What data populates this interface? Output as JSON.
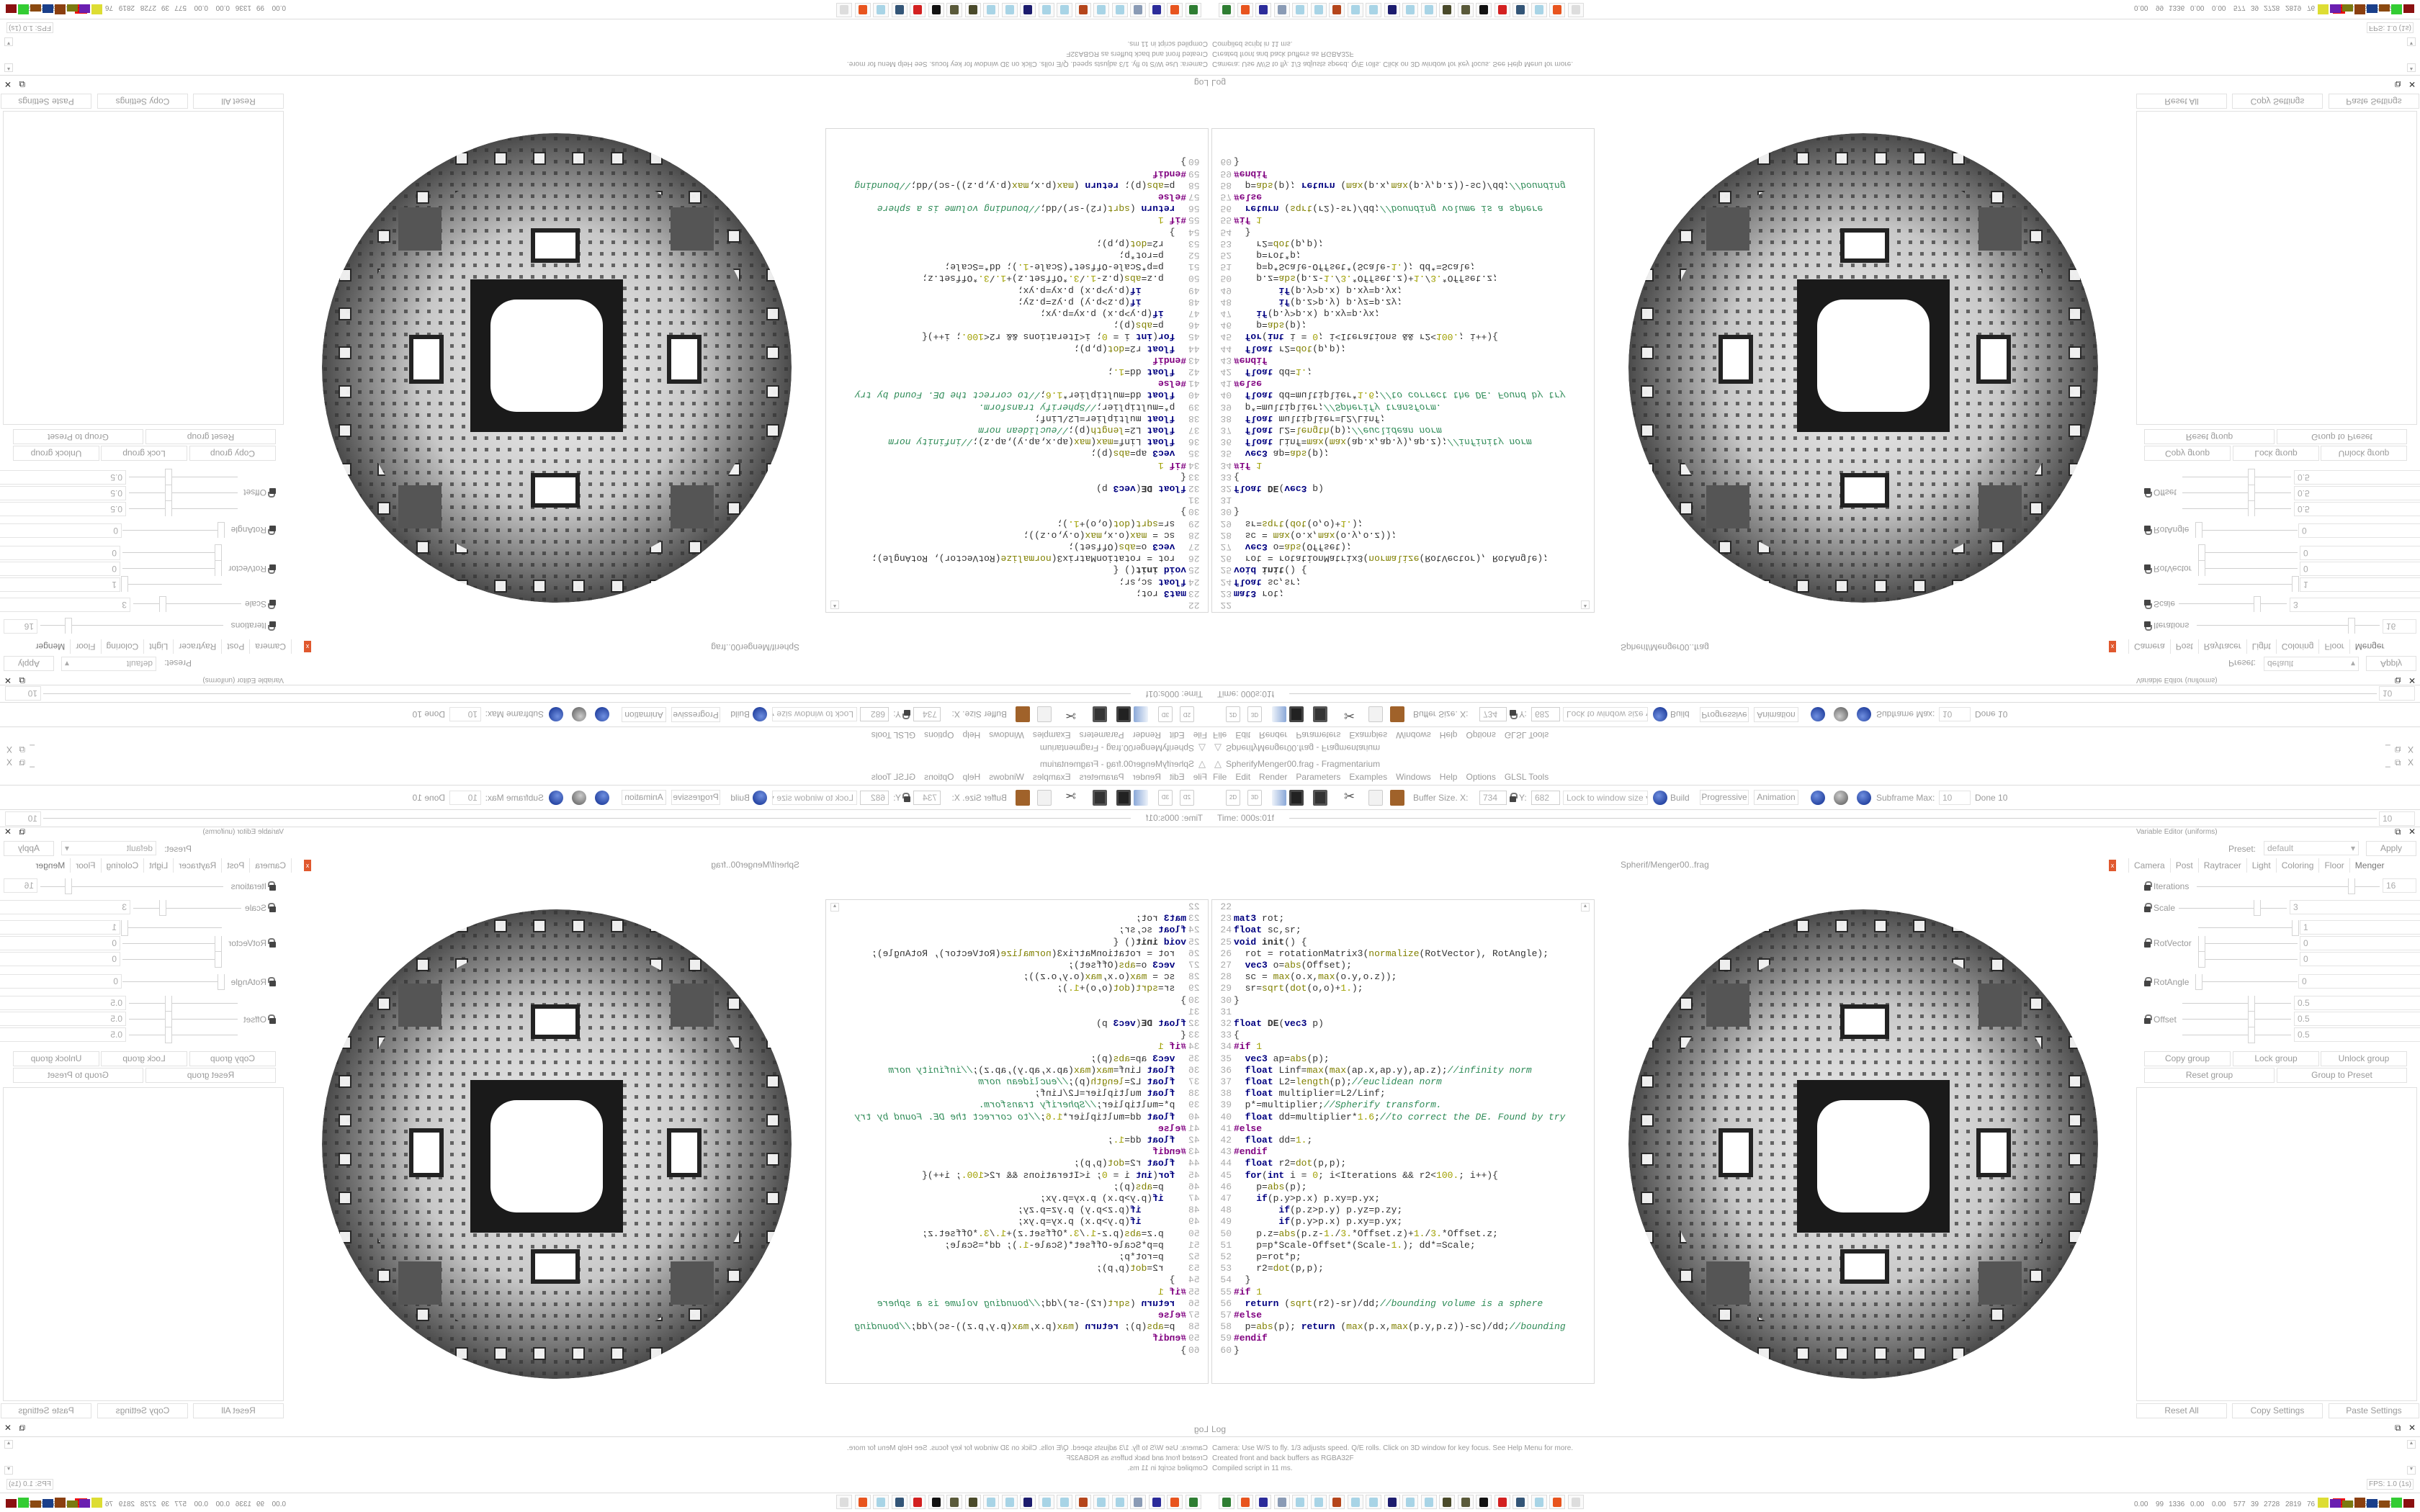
{
  "window": {
    "title": "SpherifyMenger00.frag - Fragmentarium",
    "controls": [
      "_",
      "⧉",
      "X"
    ]
  },
  "menu": [
    "File",
    "Edit",
    "Render",
    "Parameters",
    "Examples",
    "Windows",
    "Help",
    "Options",
    "GLSL Tools"
  ],
  "toolbar": {
    "btn_2d": "2D",
    "btn_3d": "3D",
    "buffer_label": "Buffer Size. X:",
    "buffer_x": "734",
    "y_label": "Y:",
    "buffer_y": "682",
    "lock_select": "Lock to window size",
    "build": "Build",
    "progressive": "Progressive",
    "animation": "Animation",
    "subframe_label": "Subframe Max:",
    "subframe_value": "10",
    "done": "Done 10",
    "icons": [
      "2d-icon",
      "3d-icon",
      "open-icon",
      "save-icon",
      "save-as-icon",
      "cut-icon",
      "copy-icon",
      "paste-icon",
      "build-icon",
      "rewind-icon",
      "play-icon",
      "stop-icon"
    ]
  },
  "timeline": {
    "time": "Time: 000s:01f",
    "frame": "10"
  },
  "editor": {
    "tab_label": "Spherif/Menger00..frag",
    "first_line": 22,
    "lines": [
      "",
      "mat3 rot;",
      "float sc,sr;",
      "void init() {",
      "  rot = rotationMatrix3(normalize(RotVector), RotAngle);",
      "  vec3 o=abs(Offset);",
      "  sc = max(o.x,max(o.y,o.z));",
      "  sr=sqrt(dot(o,o)+1.);",
      "}",
      "",
      "float DE(vec3 p)",
      "{",
      "#if 1",
      "  vec3 ap=abs(p);",
      "  float Linf=max(max(ap.x,ap.y),ap.z);//infinity norm",
      "  float L2=length(p);//euclidean norm",
      "  float multiplier=L2/Linf;",
      "  p*=multiplier;//Spherify transform.",
      "  float dd=multiplier*1.6;//to correct the DE. Found by try",
      "#else",
      "  float dd=1.;",
      "#endif",
      "  float r2=dot(p,p);",
      "  for(int i = 0; i<Iterations && r2<100.; i++){",
      "    p=abs(p);",
      "    if(p.y>p.x) p.xy=p.yx;",
      "        if(p.z>p.y) p.yz=p.zy;",
      "        if(p.y>p.x) p.xy=p.yx;",
      "    p.z=abs(p.z-1./3.*Offset.z)+1./3.*Offset.z;",
      "    p=p*Scale-Offset*(Scale-1.); dd*=Scale;",
      "    p=rot*p;",
      "    r2=dot(p,p);",
      "  }",
      "#if 1",
      "  return (sqrt(r2)-sr)/dd;//bounding volume is a sphere",
      "#else",
      "  p=abs(p); return (max(p.x,max(p.y,p.z))-sc)/dd;//bounding",
      "#endif",
      "}"
    ]
  },
  "variable_editor": {
    "title": "Variable Editor (uniforms)",
    "preset_label": "Preset:",
    "preset_value": "default",
    "apply": "Apply",
    "tabs": [
      "Camera",
      "Post",
      "Raytracer",
      "Light",
      "Coloring",
      "Floor",
      "Menger"
    ],
    "active_tab": "Menger",
    "params": {
      "iterations": {
        "label": "Iterations",
        "value": "16"
      },
      "scale": {
        "label": "Scale",
        "value": "3"
      },
      "rotvector": {
        "label": "RotVector",
        "values": [
          "1",
          "0",
          "0"
        ]
      },
      "rotangle": {
        "label": "RotAngle",
        "value": "0"
      },
      "offset": {
        "label": "Offset",
        "values": [
          "0.5",
          "0.5",
          "0.5"
        ]
      }
    },
    "group_buttons": [
      "Copy group",
      "Lock group",
      "Unlock group",
      "Reset group",
      "Group to Preset"
    ],
    "bottom_buttons": [
      "Reset All",
      "Copy Settings",
      "Paste Settings"
    ]
  },
  "log": {
    "title": "Log",
    "lines": [
      "Camera: Use W/S to fly. 1/3 adjusts speed. Q/E rolls. Click on 3D window for key focus. See Help Menu for more.",
      "Created front and back buffers as RGBA32F",
      "Compiled script in 11 ms."
    ],
    "fps": "FPS: 1.0 (1s)"
  },
  "taskbar": {
    "apps": [
      {
        "icon": "terminal-icon",
        "color": "#2e7d32"
      },
      {
        "icon": "firefox-icon",
        "color": "#e8541e"
      },
      {
        "icon": "floppy-64-icon",
        "color": "#2b2b9a"
      },
      {
        "icon": "scroll-icon",
        "color": "#8a9bb5"
      },
      {
        "icon": "notepad-icon",
        "color": "#a8d4e6"
      },
      {
        "icon": "notepad-icon",
        "color": "#a8d4e6"
      },
      {
        "icon": "bug-icon",
        "color": "#b5451b"
      },
      {
        "icon": "notepad-icon",
        "color": "#a8d4e6"
      },
      {
        "icon": "notepad-icon",
        "color": "#a8d4e6"
      },
      {
        "icon": "jpeg-icon",
        "color": "#1c1c6e"
      },
      {
        "icon": "notepad-icon",
        "color": "#a8d4e6"
      },
      {
        "icon": "notepad-icon",
        "color": "#a8d4e6"
      },
      {
        "icon": "coin-icon",
        "color": "#4a4a2a"
      },
      {
        "icon": "coin-icon",
        "color": "#5a5a3a"
      },
      {
        "icon": "inkscape-icon",
        "color": "#111111"
      },
      {
        "icon": "red-app-icon",
        "color": "#d32020"
      },
      {
        "icon": "monitor-icon",
        "color": "#335577"
      },
      {
        "icon": "notepad-icon",
        "color": "#a8d4e6"
      },
      {
        "icon": "firefox-icon",
        "color": "#e8541e"
      },
      {
        "icon": "fragmentarium-icon",
        "color": "#dddddd"
      }
    ],
    "stats": [
      "0.00",
      "99",
      "1336",
      "0.00",
      "0.00",
      "577",
      "39",
      "2728",
      "2819",
      "76",
      "81",
      "50",
      "47",
      "5332",
      "6734"
    ],
    "highlight_stat": "50",
    "highlight_color": "#ee1111",
    "graph_colors": [
      "#dddd33",
      "#6a1fb0",
      "#7a7a10",
      "#8b4010",
      "#1a3f8a",
      "#8b4a10",
      "#33cc33",
      "#8b1010"
    ]
  },
  "colors": {
    "keyword": "#000080",
    "function": "#808000",
    "comment": "#2e8b57",
    "preprocessor": "#800080",
    "close_tab": "#e0582e",
    "button_blue": "#1a3fa8"
  }
}
